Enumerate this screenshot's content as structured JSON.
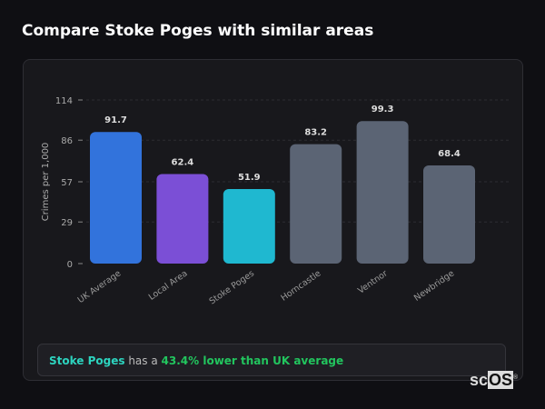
{
  "title": "Compare Stoke Poges with similar areas",
  "chart_data": {
    "type": "bar",
    "categories": [
      "UK Average",
      "Local Area",
      "Stoke Poges",
      "Horncastle",
      "Ventnor",
      "Newbridge"
    ],
    "values": [
      91.7,
      62.4,
      51.9,
      83.2,
      99.3,
      68.4
    ],
    "data_labels": [
      "91.7",
      "62.4",
      "51.9",
      "83.2",
      "99.3",
      "68.4"
    ],
    "colors": [
      "#3273dc",
      "#7b4fd6",
      "#1fb8d0",
      "#5b6474",
      "#5b6474",
      "#5b6474"
    ],
    "ylabel": "Crimes per 1,000",
    "xlabel": "",
    "ylim": [
      0,
      114
    ],
    "yticks": [
      0,
      29,
      57,
      86,
      114
    ],
    "grid": true
  },
  "insight": {
    "area": "Stoke Poges",
    "connector": " has a ",
    "comparison": "43.4% lower than UK average"
  },
  "logo": {
    "text_a": "sc",
    "text_b": "OS",
    "mark": "®"
  }
}
